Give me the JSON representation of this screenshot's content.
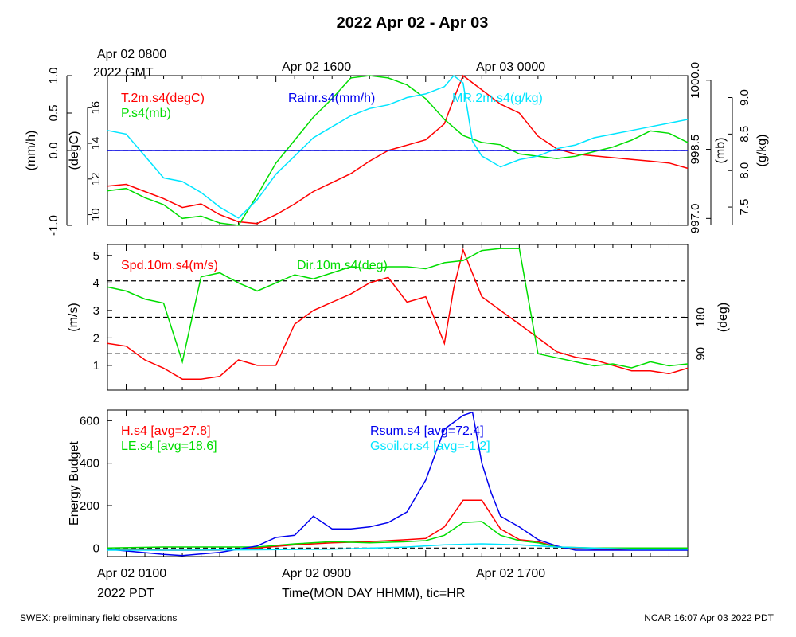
{
  "title": "2022 Apr 02 - Apr 03",
  "gmt_top_labels": {
    "first_line1": "Apr 02 0800",
    "first_line2": "2022 GMT",
    "second": "Apr 02 1600",
    "third": "Apr 03 0000"
  },
  "pdt_bottom_labels": {
    "first_line1": "Apr 02 0100",
    "first_line2": "2022 PDT",
    "second": "Apr 02 0900",
    "third": "Apr 02 1700"
  },
  "x_axis_label": "Time(MON DAY HHMM), tic=HR",
  "footer": {
    "left": "SWEX: preliminary field observations",
    "right": "NCAR 16:07 Apr 03 2022 PDT"
  },
  "colors": {
    "red": "#ff0000",
    "green": "#00dd00",
    "blue": "#0000ee",
    "cyan": "#00e5ff",
    "black": "#000000"
  },
  "chart_data": [
    {
      "type": "line",
      "panel": "top",
      "x_unit": "hours since Apr 02 0000 PDT",
      "xlim": [
        0,
        31
      ],
      "axes": [
        {
          "id": "rain",
          "label": "(mm/h)",
          "side": "left-outer",
          "ylim": [
            -1.0,
            1.0
          ],
          "ticks": [
            "-1.0",
            "0.0",
            "0.5",
            "1.0"
          ],
          "tick_values": [
            -1.0,
            0.0,
            0.5,
            1.0
          ]
        },
        {
          "id": "temp",
          "label": "(degC)",
          "side": "left-inner",
          "ylim": [
            9.4,
            17.8
          ],
          "ticks": [
            "10",
            "12",
            "14",
            "16"
          ],
          "tick_values": [
            10,
            12,
            14,
            16
          ]
        },
        {
          "id": "pres",
          "label": "(mb)",
          "side": "right-inner",
          "ylim": [
            996.85,
            1000.1
          ],
          "ticks": [
            "997.0",
            "998.5",
            "1000.0"
          ],
          "tick_values": [
            997.0,
            998.5,
            1000.0
          ]
        },
        {
          "id": "mr",
          "label": "(g/kg)",
          "side": "right-outer",
          "ylim": [
            7.25,
            9.3
          ],
          "ticks": [
            "7.5",
            "8.0",
            "8.5",
            "9.0"
          ],
          "tick_values": [
            7.5,
            8.0,
            8.5,
            9.0
          ]
        }
      ],
      "series": [
        {
          "name": "T.2m.s4(degC)",
          "axis": "temp",
          "color": "red",
          "x": [
            0,
            1,
            2,
            3,
            4,
            5,
            6,
            7,
            8,
            9,
            10,
            11,
            12,
            13,
            14,
            15,
            16,
            17,
            18,
            18.5,
            19,
            20,
            21,
            22,
            23,
            24,
            25,
            26,
            27,
            28,
            29,
            30,
            31
          ],
          "y": [
            11.6,
            11.7,
            11.3,
            10.9,
            10.4,
            10.6,
            10.0,
            9.6,
            9.5,
            10.0,
            10.6,
            11.3,
            11.8,
            12.3,
            13.0,
            13.6,
            13.9,
            14.2,
            15.1,
            16.5,
            17.8,
            17.0,
            16.2,
            15.7,
            14.4,
            13.7,
            13.4,
            13.3,
            13.2,
            13.1,
            13.0,
            12.9,
            12.6
          ]
        },
        {
          "name": "P.s4(mb)",
          "axis": "pres",
          "color": "green",
          "x": [
            0,
            1,
            2,
            3,
            4,
            5,
            6,
            7,
            8,
            9,
            10,
            11,
            12,
            13,
            14,
            15,
            16,
            17,
            18,
            19,
            20,
            21,
            22,
            23,
            24,
            25,
            26,
            27,
            28,
            29,
            30,
            31
          ],
          "y": [
            997.6,
            997.65,
            997.45,
            997.3,
            997.0,
            997.05,
            996.9,
            996.85,
            997.5,
            998.2,
            998.7,
            999.2,
            999.6,
            1000.05,
            1000.1,
            1000.05,
            999.9,
            999.6,
            999.15,
            998.8,
            998.65,
            998.6,
            998.4,
            998.35,
            998.3,
            998.35,
            998.45,
            998.55,
            998.7,
            998.9,
            998.85,
            998.65
          ]
        },
        {
          "name": "MR.2m.s4(g/kg)",
          "axis": "mr",
          "color": "cyan",
          "x": [
            0,
            1,
            2,
            3,
            4,
            5,
            6,
            7,
            8,
            9,
            10,
            11,
            12,
            13,
            14,
            15,
            16,
            17,
            18,
            18.5,
            19,
            19.5,
            20,
            21,
            22,
            23,
            24,
            25,
            26,
            27,
            28,
            29,
            30,
            31
          ],
          "y": [
            8.55,
            8.5,
            8.2,
            7.9,
            7.85,
            7.7,
            7.5,
            7.35,
            7.6,
            7.95,
            8.2,
            8.45,
            8.6,
            8.75,
            8.85,
            8.9,
            9.0,
            9.05,
            9.15,
            9.3,
            9.2,
            8.4,
            8.2,
            8.05,
            8.15,
            8.2,
            8.3,
            8.35,
            8.45,
            8.5,
            8.55,
            8.6,
            8.65,
            8.7
          ]
        },
        {
          "name": "Rainr.s4(mm/h)",
          "axis": "rain",
          "color": "blue",
          "x": [
            0,
            31
          ],
          "y": [
            0.0,
            0.0
          ]
        }
      ],
      "reference_lines": [
        {
          "axis": "rain",
          "y": 0.0,
          "style": "dashed"
        }
      ],
      "grid": false
    },
    {
      "type": "line",
      "panel": "middle",
      "xlim": [
        0,
        31
      ],
      "axes": [
        {
          "id": "spd",
          "label": "(m/s)",
          "side": "left",
          "ylim": [
            0.1,
            5.4
          ],
          "ticks": [
            "1",
            "2",
            "3",
            "4",
            "5"
          ],
          "tick_values": [
            1,
            2,
            3,
            4,
            5
          ]
        },
        {
          "id": "dir",
          "label": "(deg)",
          "side": "right",
          "ylim": [
            0,
            360
          ],
          "ticks": [
            "90",
            "180"
          ],
          "tick_values": [
            90,
            180
          ]
        }
      ],
      "series": [
        {
          "name": "Spd.10m.s4(m/s)",
          "axis": "spd",
          "color": "red",
          "x": [
            0,
            1,
            2,
            3,
            4,
            5,
            6,
            7,
            8,
            9,
            10,
            11,
            12,
            13,
            14,
            15,
            16,
            17,
            18,
            18.5,
            19,
            20,
            21,
            22,
            23,
            24,
            25,
            26,
            27,
            28,
            29,
            30,
            31
          ],
          "y": [
            1.8,
            1.7,
            1.2,
            0.9,
            0.5,
            0.5,
            0.6,
            1.2,
            1.0,
            1.0,
            2.5,
            3.0,
            3.3,
            3.6,
            4.0,
            4.2,
            3.3,
            3.5,
            1.8,
            3.8,
            5.2,
            3.5,
            3.0,
            2.5,
            2.0,
            1.5,
            1.3,
            1.2,
            1.0,
            0.8,
            0.8,
            0.7,
            0.9
          ]
        },
        {
          "name": "Dir.10m.s4(deg)",
          "axis": "dir",
          "color": "green",
          "x": [
            0,
            1,
            2,
            3,
            4,
            5,
            6,
            7,
            8,
            9,
            10,
            11,
            12,
            13,
            14,
            15,
            16,
            17,
            18,
            19,
            20,
            21,
            22,
            23,
            24,
            25,
            26,
            27,
            28,
            29,
            30,
            31
          ],
          "y": [
            255,
            245,
            225,
            215,
            70,
            280,
            290,
            265,
            245,
            265,
            285,
            275,
            290,
            305,
            300,
            305,
            305,
            300,
            315,
            320,
            345,
            350,
            350,
            90,
            80,
            70,
            60,
            65,
            55,
            70,
            60,
            65
          ]
        }
      ],
      "reference_lines": [
        {
          "axis": "dir",
          "y": 90,
          "style": "dashed"
        },
        {
          "axis": "dir",
          "y": 180,
          "style": "dashed"
        },
        {
          "axis": "dir",
          "y": 270,
          "style": "dashed"
        }
      ],
      "grid": false
    },
    {
      "type": "line",
      "panel": "bottom",
      "xlim": [
        0,
        31
      ],
      "axes": [
        {
          "id": "en",
          "label": "Energy Budget",
          "side": "left",
          "ylim": [
            -40,
            650
          ],
          "ticks": [
            "0",
            "200",
            "400",
            "600"
          ],
          "tick_values": [
            0,
            200,
            400,
            600
          ]
        }
      ],
      "series": [
        {
          "name": "H.s4 [avg=27.8]",
          "axis": "en",
          "color": "red",
          "x": [
            0,
            3,
            6,
            8,
            10,
            12,
            14,
            16,
            17,
            18,
            19,
            20,
            21,
            22,
            23,
            24,
            26,
            28,
            31
          ],
          "y": [
            -5,
            -10,
            -10,
            0,
            15,
            25,
            30,
            40,
            45,
            100,
            225,
            225,
            90,
            40,
            30,
            5,
            -5,
            -5,
            -5
          ]
        },
        {
          "name": "LE.s4 [avg=18.6]",
          "axis": "en",
          "color": "green",
          "x": [
            0,
            3,
            6,
            8,
            10,
            12,
            14,
            16,
            17,
            18,
            19,
            20,
            21,
            22,
            23,
            24,
            26,
            28,
            31
          ],
          "y": [
            0,
            5,
            5,
            5,
            20,
            30,
            25,
            30,
            35,
            60,
            120,
            125,
            60,
            35,
            25,
            5,
            0,
            0,
            0
          ]
        },
        {
          "name": "Rsum.s4 [avg=72.4]",
          "axis": "en",
          "color": "blue",
          "x": [
            0,
            3,
            4,
            6,
            7,
            8,
            9,
            10,
            11,
            12,
            13,
            14,
            15,
            16,
            17,
            18,
            19,
            19.5,
            20,
            20.5,
            21,
            22,
            23,
            24,
            25,
            28,
            31
          ],
          "y": [
            -5,
            -30,
            -35,
            -20,
            -5,
            10,
            50,
            60,
            150,
            90,
            90,
            100,
            120,
            170,
            320,
            560,
            625,
            640,
            400,
            260,
            150,
            100,
            40,
            10,
            -10,
            -10,
            -10
          ]
        },
        {
          "name": "Gsoil.cr.s4 [avg=-1.2]",
          "axis": "en",
          "color": "cyan",
          "x": [
            0,
            4,
            8,
            12,
            16,
            18,
            20,
            22,
            24,
            28,
            31
          ],
          "y": [
            -10,
            -10,
            -8,
            -5,
            5,
            15,
            20,
            15,
            5,
            -5,
            -5
          ]
        }
      ],
      "reference_lines": [
        {
          "axis": "en",
          "y": 0,
          "style": "dashed"
        }
      ],
      "grid": false
    }
  ]
}
